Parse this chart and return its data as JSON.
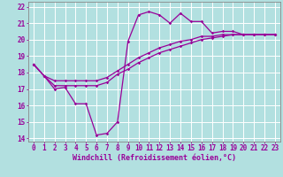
{
  "xlabel": "Windchill (Refroidissement éolien,°C)",
  "bg_color": "#b2e0e0",
  "line_color": "#990099",
  "grid_color": "#ffffff",
  "xmin": 0,
  "xmax": 23,
  "ymin": 14,
  "ymax": 22,
  "line1_x": [
    0,
    1,
    2,
    3,
    4,
    5,
    6,
    7,
    8,
    9,
    10,
    11,
    12,
    13,
    14,
    15,
    16,
    17,
    18,
    19,
    20,
    21,
    22,
    23
  ],
  "line1_y": [
    18.5,
    17.8,
    17.0,
    17.1,
    16.1,
    16.1,
    14.2,
    14.3,
    15.0,
    19.9,
    21.5,
    21.7,
    21.5,
    21.0,
    21.6,
    21.1,
    21.1,
    20.4,
    20.5,
    20.5,
    20.3,
    20.3,
    20.3,
    20.3
  ],
  "line2_x": [
    0,
    1,
    2,
    3,
    4,
    5,
    6,
    7,
    8,
    9,
    10,
    11,
    12,
    13,
    14,
    15,
    16,
    17,
    18,
    19,
    20,
    21,
    22,
    23
  ],
  "line2_y": [
    18.5,
    17.8,
    17.5,
    17.5,
    17.5,
    17.5,
    17.5,
    17.7,
    18.1,
    18.5,
    18.9,
    19.2,
    19.5,
    19.7,
    19.9,
    20.0,
    20.2,
    20.2,
    20.3,
    20.3,
    20.3,
    20.3,
    20.3,
    20.3
  ],
  "line3_x": [
    0,
    1,
    2,
    3,
    4,
    5,
    6,
    7,
    8,
    9,
    10,
    11,
    12,
    13,
    14,
    15,
    16,
    17,
    18,
    19,
    20,
    21,
    22,
    23
  ],
  "line3_y": [
    18.5,
    17.8,
    17.2,
    17.2,
    17.2,
    17.2,
    17.2,
    17.4,
    17.9,
    18.2,
    18.6,
    18.9,
    19.2,
    19.4,
    19.6,
    19.8,
    20.0,
    20.1,
    20.2,
    20.3,
    20.3,
    20.3,
    20.3,
    20.3
  ],
  "xtick_labels": [
    "0",
    "1",
    "2",
    "3",
    "4",
    "5",
    "6",
    "7",
    "8",
    "9",
    "10",
    "11",
    "12",
    "13",
    "14",
    "15",
    "16",
    "17",
    "18",
    "19",
    "20",
    "21",
    "22",
    "23"
  ],
  "ytick_labels": [
    "14",
    "15",
    "16",
    "17",
    "18",
    "19",
    "20",
    "21",
    "22"
  ],
  "ytick_vals": [
    14,
    15,
    16,
    17,
    18,
    19,
    20,
    21,
    22
  ],
  "xlabel_fontsize": 6.0,
  "tick_fontsize": 5.5
}
